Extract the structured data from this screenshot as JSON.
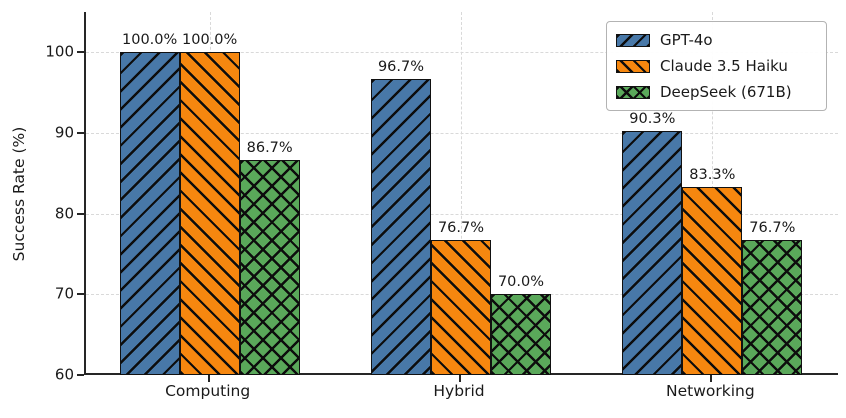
{
  "chart_data": {
    "type": "bar",
    "title": "",
    "categories": [
      "Computing",
      "Hybrid",
      "Networking"
    ],
    "series": [
      {
        "name": "GPT-4o",
        "color": "#4878A8",
        "hatch": "/",
        "values": [
          100.0,
          96.7,
          90.3
        ]
      },
      {
        "name": "Claude 3.5 Haiku",
        "color": "#F6870F",
        "hatch": "\\",
        "values": [
          100.0,
          76.7,
          83.3
        ]
      },
      {
        "name": "DeepSeek (671B)",
        "color": "#5AA85A",
        "hatch": "x",
        "values": [
          86.7,
          70.0,
          76.7
        ]
      }
    ],
    "bar_value_labels": [
      [
        "100.0%",
        "96.7%",
        "90.3%"
      ],
      [
        "100.0%",
        "76.7%",
        "83.3%"
      ],
      [
        "86.7%",
        "70.0%",
        "76.7%"
      ]
    ],
    "xlabel": "",
    "ylabel": "Success Rate (%)",
    "ylim": [
      60,
      105
    ],
    "yticks": [
      "60",
      "70",
      "80",
      "90",
      "100"
    ],
    "ytick_values": [
      60,
      70,
      80,
      90,
      100
    ],
    "grid": true,
    "legend_position": "upper right",
    "legend_entries": [
      "GPT-4o",
      "Claude 3.5 Haiku",
      "DeepSeek (671B)"
    ]
  },
  "colors": {
    "axis": "#262626",
    "grid": "#d9d9d9",
    "text": "#1a1a1a",
    "hatch": "#0d0d0d",
    "background": "#ffffff"
  }
}
